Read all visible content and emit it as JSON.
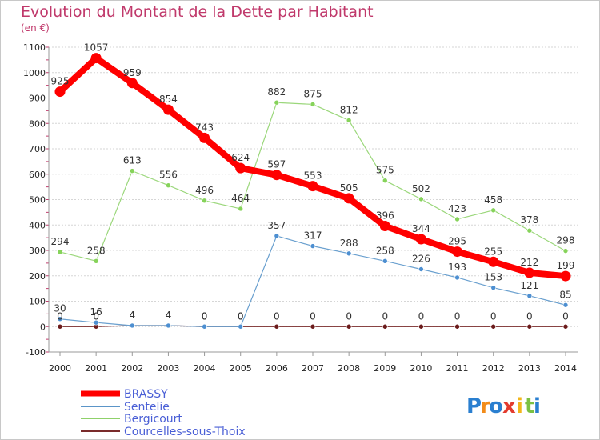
{
  "header": {
    "title": "Evolution du Montant de la Dette par Habitant",
    "subtitle": "(en €)"
  },
  "logo": {
    "letters": [
      "P",
      "r",
      "o",
      "x",
      "i",
      "t",
      "i"
    ],
    "colors": [
      "#2a7fd0",
      "#f28c1a",
      "#2a7fd0",
      "#e33b2e",
      "#f2b61a",
      "#7bc043",
      "#2a7fd0"
    ]
  },
  "chart_data": {
    "type": "line",
    "x": [
      2000,
      2001,
      2002,
      2003,
      2004,
      2005,
      2006,
      2007,
      2008,
      2009,
      2010,
      2011,
      2012,
      2013,
      2014
    ],
    "ylim": [
      -100,
      1100
    ],
    "yticks": [
      -100,
      0,
      100,
      200,
      300,
      400,
      500,
      600,
      700,
      800,
      900,
      1000,
      1100
    ],
    "grid": "horizontal",
    "legend_position": "bottom-left",
    "series": [
      {
        "name": "BRASSY",
        "color": "#ff0000",
        "values": [
          925,
          1057,
          959,
          854,
          743,
          624,
          597,
          553,
          505,
          396,
          344,
          295,
          255,
          212,
          199
        ]
      },
      {
        "name": "Sentelie",
        "color": "#5b95c8",
        "values": [
          30,
          16,
          4,
          4,
          0,
          0,
          357,
          317,
          288,
          258,
          226,
          193,
          153,
          121,
          85
        ]
      },
      {
        "name": "Bergicourt",
        "color": "#8fd16a",
        "values": [
          294,
          258,
          613,
          556,
          496,
          464,
          882,
          875,
          812,
          575,
          502,
          423,
          458,
          378,
          298
        ]
      },
      {
        "name": "Courcelles-sous-Thoix",
        "color": "#7a2b2b",
        "values": [
          0,
          0,
          4,
          4,
          0,
          0,
          0,
          0,
          0,
          0,
          0,
          0,
          0,
          0,
          0
        ]
      }
    ]
  }
}
